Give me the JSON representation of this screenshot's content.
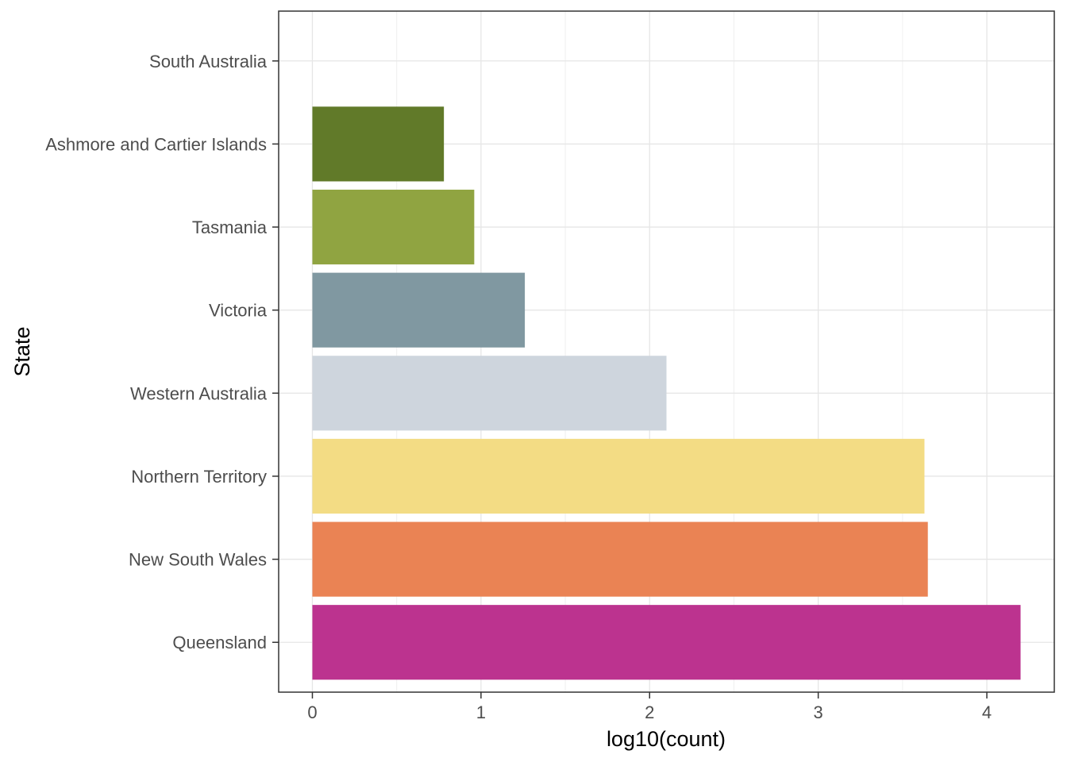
{
  "chart_data": {
    "type": "bar",
    "orientation": "horizontal",
    "xlabel": "log10(count)",
    "ylabel": "State",
    "xlim": [
      -0.2,
      4.4
    ],
    "xticks": [
      0,
      1,
      2,
      3,
      4
    ],
    "grid": true,
    "legend": "none",
    "categories": [
      "Queensland",
      "New South Wales",
      "Northern Territory",
      "Western Australia",
      "Victoria",
      "Tasmania",
      "Ashmore and Cartier Islands",
      "South Australia"
    ],
    "values": [
      4.2,
      3.65,
      3.63,
      2.1,
      1.26,
      0.96,
      0.78,
      0
    ],
    "colors": [
      "#bc338f",
      "#ea8354",
      "#f3dc84",
      "#ced5dd",
      "#8098a1",
      "#90a441",
      "#617a29",
      "#ffffff"
    ]
  }
}
